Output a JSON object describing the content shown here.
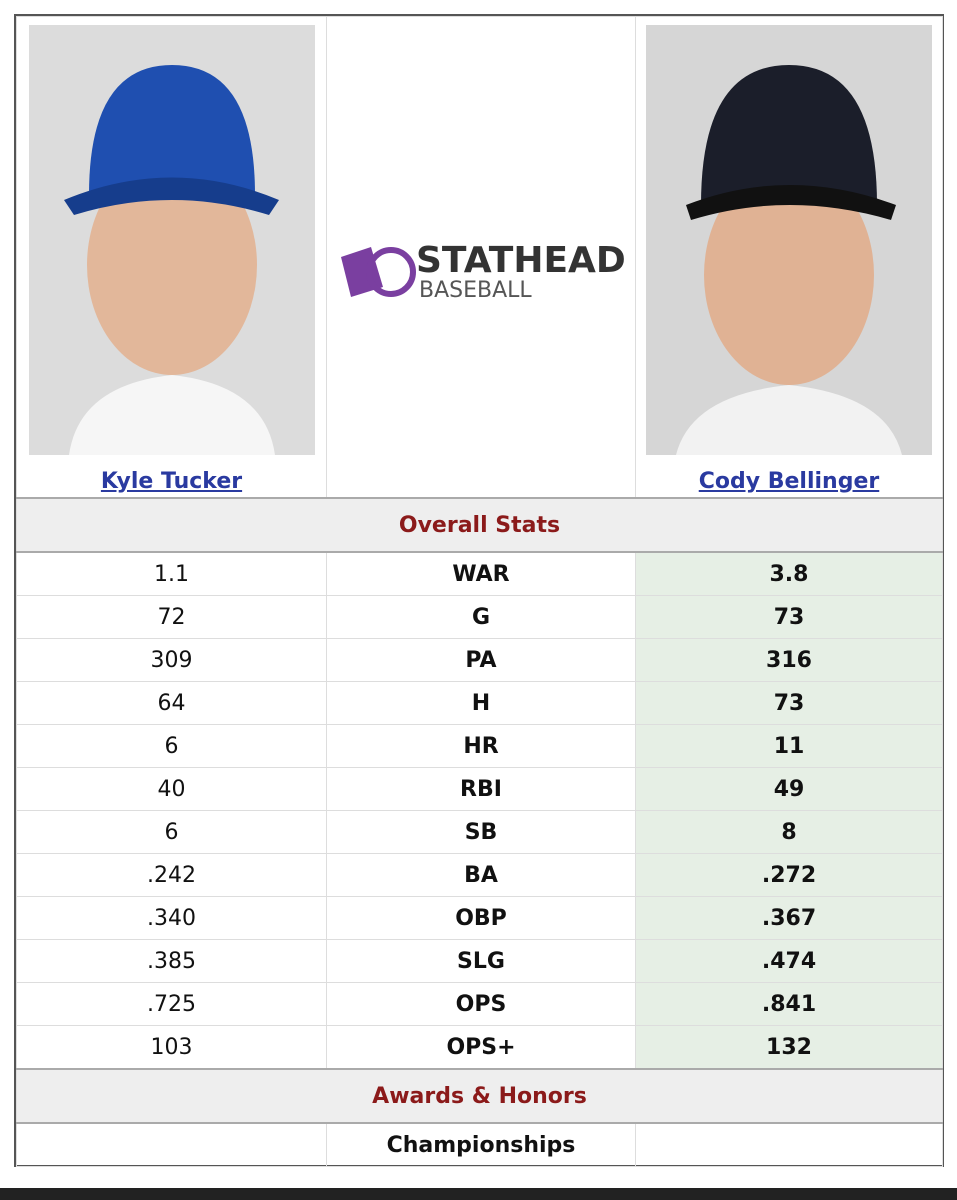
{
  "players": [
    {
      "name": "Kyle Tucker"
    },
    {
      "name": "Cody Bellinger"
    }
  ],
  "logo": {
    "brand": "STATHEAD",
    "sport": "BASEBALL"
  },
  "sections": [
    {
      "title": "Overall Stats",
      "rows": [
        [
          "1.1",
          "WAR",
          "3.8"
        ],
        [
          "72",
          "G",
          "73"
        ],
        [
          "309",
          "PA",
          "316"
        ],
        [
          "64",
          "H",
          "73"
        ],
        [
          "6",
          "HR",
          "11"
        ],
        [
          "40",
          "RBI",
          "49"
        ],
        [
          "6",
          "SB",
          "8"
        ],
        [
          ".242",
          "BA",
          ".272"
        ],
        [
          ".340",
          "OBP",
          ".367"
        ],
        [
          ".385",
          "SLG",
          ".474"
        ],
        [
          ".725",
          "OPS",
          ".841"
        ],
        [
          "103",
          "OPS+",
          "132"
        ]
      ]
    },
    {
      "title": "Awards & Honors",
      "rows": [
        [
          "",
          "Championships",
          ""
        ]
      ]
    }
  ]
}
